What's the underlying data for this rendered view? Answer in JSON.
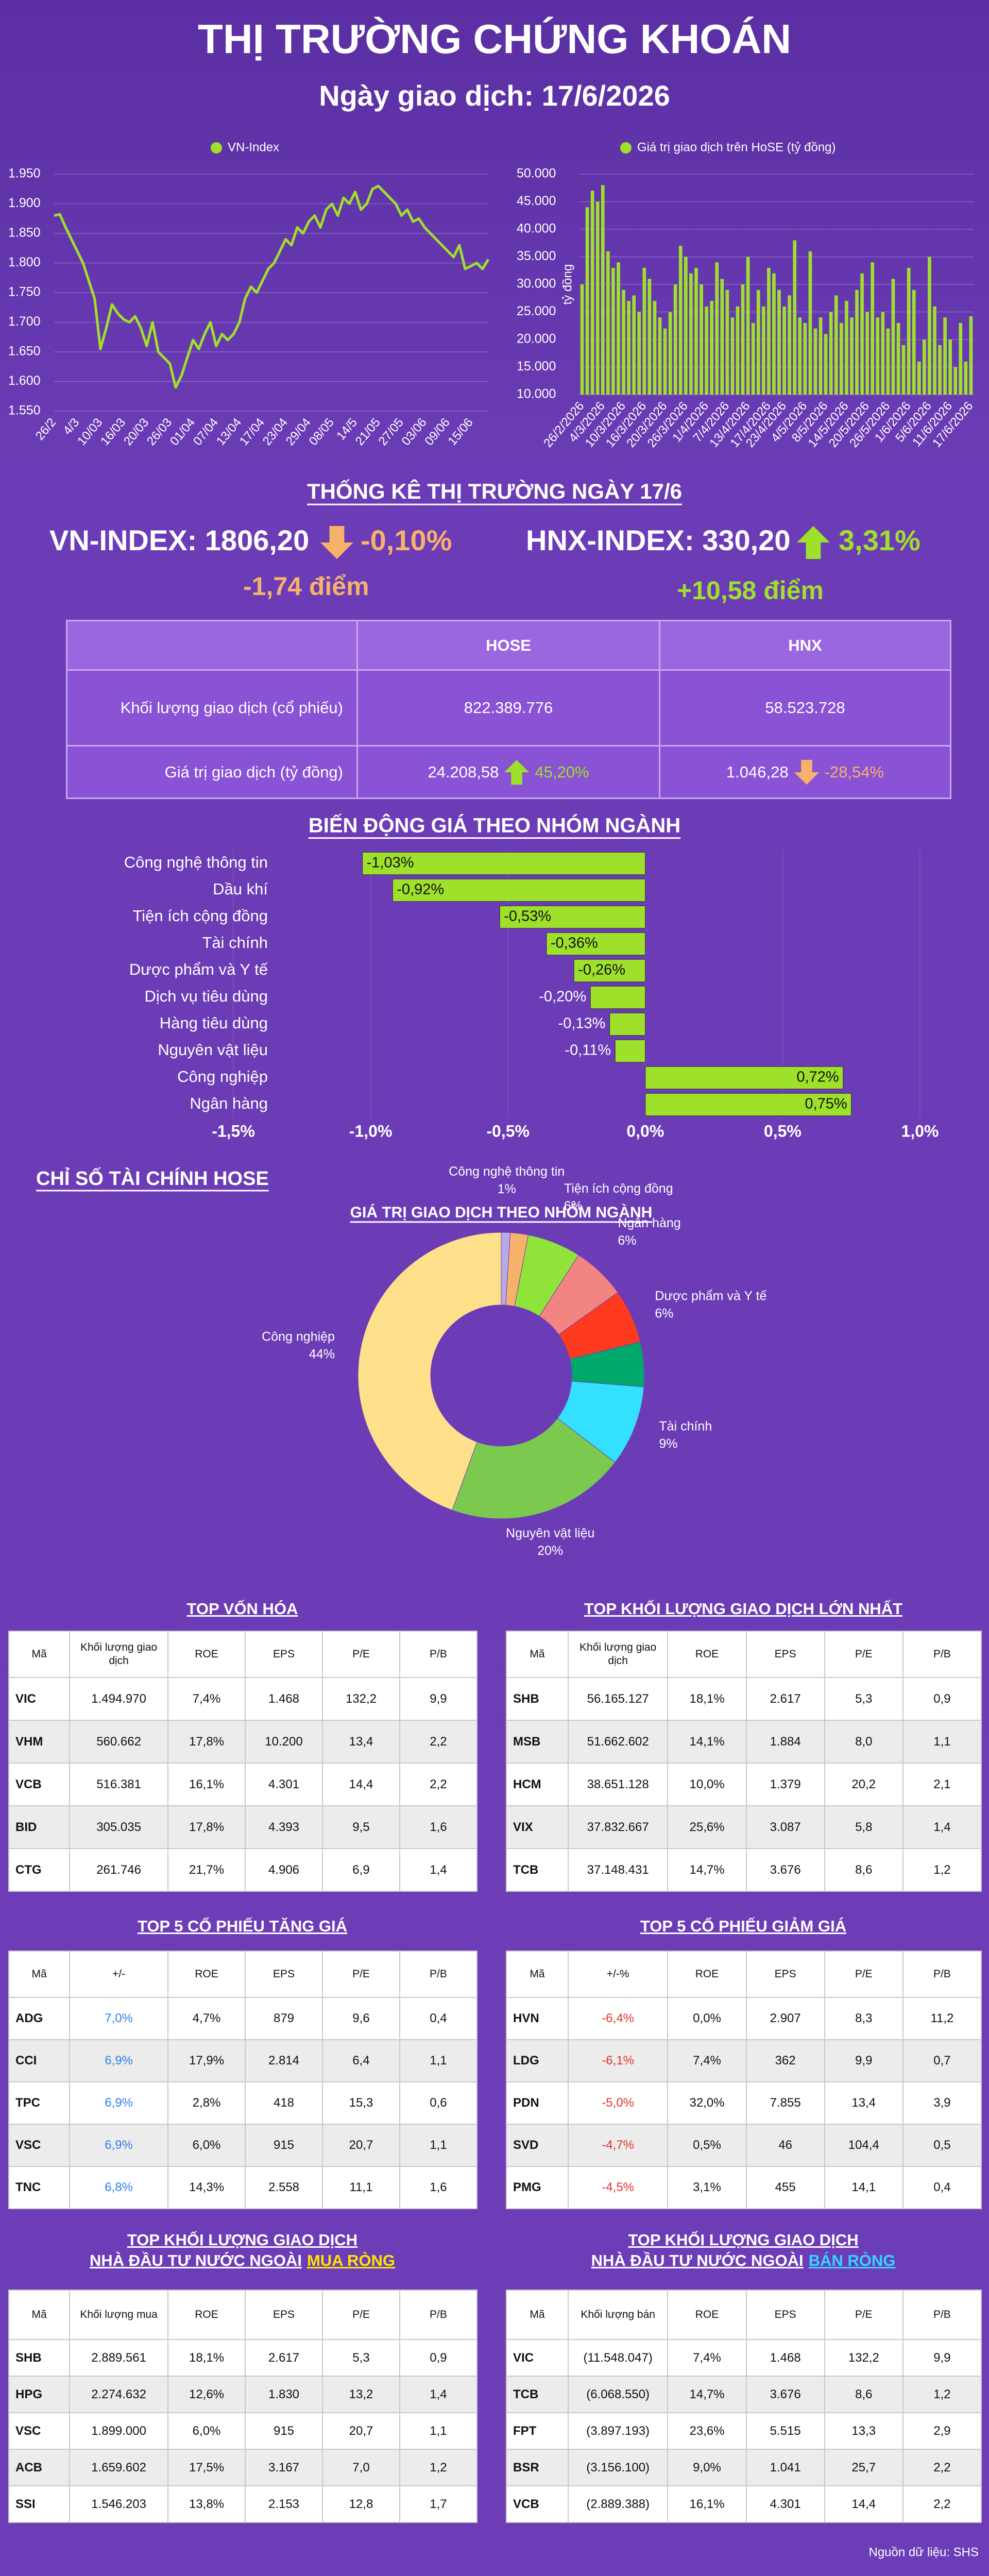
{
  "header": {
    "title": "THỊ TRƯỜNG CHỨNG KHOÁN",
    "subtitle": "Ngày giao dịch: 17/6/2026"
  },
  "chart_data": [
    {
      "type": "line",
      "categories": [
        "26/2",
        null,
        null,
        null,
        "4/3",
        null,
        null,
        null,
        "10/03",
        null,
        null,
        null,
        "16/03",
        null,
        null,
        null,
        "20/03",
        null,
        null,
        null,
        "26/03",
        null,
        null,
        null,
        "01/04",
        null,
        null,
        null,
        "07/04",
        null,
        null,
        null,
        "13/04",
        null,
        null,
        null,
        "17/04",
        null,
        null,
        null,
        "23/04",
        null,
        null,
        null,
        "29/04",
        null,
        null,
        null,
        "08/05",
        null,
        null,
        null,
        "14/5",
        null,
        null,
        null,
        "21/05",
        null,
        null,
        null,
        "27/05",
        null,
        null,
        null,
        "03/06",
        null,
        null,
        null,
        "09/06",
        null,
        null,
        null,
        "15/06",
        null,
        null,
        null
      ],
      "series": [
        {
          "name": "VN-Index",
          "color": "#9fe02b",
          "values": [
            1880,
            1882,
            1860,
            1840,
            1820,
            1800,
            1770,
            1740,
            1655,
            1690,
            1730,
            1715,
            1705,
            1700,
            1710,
            1690,
            1660,
            1700,
            1650,
            1640,
            1630,
            1590,
            1610,
            1640,
            1670,
            1655,
            1680,
            1700,
            1660,
            1680,
            1670,
            1680,
            1700,
            1740,
            1760,
            1750,
            1770,
            1790,
            1800,
            1820,
            1840,
            1830,
            1860,
            1850,
            1870,
            1880,
            1860,
            1890,
            1900,
            1880,
            1910,
            1900,
            1920,
            1890,
            1900,
            1925,
            1930,
            1920,
            1910,
            1900,
            1880,
            1890,
            1870,
            1875,
            1860,
            1850,
            1840,
            1830,
            1820,
            1810,
            1830,
            1790,
            1795,
            1800,
            1790,
            1806.2
          ]
        }
      ],
      "ylim": [
        1550,
        1950
      ],
      "yticks": [
        {
          "value": 1550,
          "label": "1.550"
        },
        {
          "value": 1600,
          "label": "1.600"
        },
        {
          "value": 1650,
          "label": "1.650"
        },
        {
          "value": 1700,
          "label": "1.700"
        },
        {
          "value": 1750,
          "label": "1.750"
        },
        {
          "value": 1800,
          "label": "1.800"
        },
        {
          "value": 1850,
          "label": "1.850"
        },
        {
          "value": 1900,
          "label": "1.900"
        },
        {
          "value": 1950,
          "label": "1.950"
        }
      ],
      "grid": true
    },
    {
      "type": "bar",
      "categories": [
        "26/2/2026",
        null,
        null,
        null,
        "4/3/2026",
        null,
        null,
        null,
        "10/3/2026",
        null,
        null,
        null,
        "16/3/2026",
        null,
        null,
        null,
        "20/3/2026",
        null,
        null,
        null,
        "26/3/2026",
        null,
        null,
        null,
        "1/4/2026",
        null,
        null,
        null,
        "7/4/2026",
        null,
        null,
        null,
        "13/4/2026",
        null,
        null,
        null,
        "17/4/2026",
        null,
        null,
        "23/4/2026",
        null,
        null,
        null,
        "4/5/2026",
        null,
        null,
        null,
        "8/5/2026",
        null,
        null,
        null,
        "14/5/2026",
        null,
        null,
        null,
        "20/5/2026",
        null,
        null,
        null,
        "26/5/2026",
        null,
        null,
        null,
        "1/6/2026",
        null,
        null,
        null,
        "5/6/2026",
        null,
        null,
        null,
        "11/6/2026",
        null,
        null,
        null,
        "17/6/2026"
      ],
      "series": [
        {
          "name": "Giá trị giao dịch trên HoSE (tỷ đồng)",
          "color": "#9fe02b",
          "values": [
            30000,
            44000,
            47000,
            45000,
            48000,
            36000,
            33000,
            34000,
            29000,
            27000,
            28000,
            25000,
            33000,
            31000,
            27000,
            24000,
            22000,
            25000,
            30000,
            37000,
            35000,
            32000,
            33000,
            30000,
            26000,
            27000,
            34000,
            31000,
            29000,
            24000,
            26000,
            30000,
            35000,
            23000,
            29000,
            26000,
            33000,
            32000,
            29000,
            26000,
            28000,
            38000,
            24000,
            23000,
            36000,
            22000,
            24000,
            21000,
            25000,
            28000,
            23000,
            27000,
            24000,
            29000,
            32000,
            25000,
            34000,
            24000,
            25000,
            22000,
            31000,
            23000,
            19000,
            33000,
            29000,
            16000,
            20000,
            35000,
            26000,
            19000,
            24000,
            20000,
            15000,
            23000,
            16000,
            24208.58
          ]
        }
      ],
      "y_label": "tỷ đồng",
      "ylim": [
        10000,
        50000
      ],
      "yticks": [
        {
          "value": 10000,
          "label": "10.000"
        },
        {
          "value": 15000,
          "label": "15.000"
        },
        {
          "value": 20000,
          "label": "20.000"
        },
        {
          "value": 25000,
          "label": "25.000"
        },
        {
          "value": 30000,
          "label": "30.000"
        },
        {
          "value": 35000,
          "label": "35.000"
        },
        {
          "value": 40000,
          "label": "40.000"
        },
        {
          "value": 45000,
          "label": "45.000"
        },
        {
          "value": 50000,
          "label": "50.000"
        }
      ],
      "grid": true
    },
    {
      "type": "bar",
      "orientation": "horizontal",
      "title": "BIẾN ĐỘNG GIÁ THEO NHÓM NGÀNH",
      "categories": [
        "Công nghệ thông tin",
        "Dầu khí",
        "Tiện ích cộng đồng",
        "Tài chính",
        "Dược phẩm và Y tế",
        "Dịch vụ tiêu dùng",
        "Hàng tiêu dùng",
        "Nguyên vật liệu",
        "Công nghiệp",
        "Ngân hàng"
      ],
      "values": [
        -1.03,
        -0.92,
        -0.53,
        -0.36,
        -0.26,
        -0.2,
        -0.13,
        -0.11,
        0.72,
        0.75
      ],
      "value_labels": [
        "-1,03%",
        "-0,92%",
        "-0,53%",
        "-0,36%",
        "-0,26%",
        "-0,20%",
        "-0,13%",
        "-0,11%",
        "0,72%",
        "0,75%"
      ],
      "color": "#9fe02b",
      "xlim": [
        -1.5,
        1.0
      ],
      "xticks": [
        {
          "value": -1.5,
          "label": "-1,5%"
        },
        {
          "value": -1.0,
          "label": "-1,0%"
        },
        {
          "value": -0.5,
          "label": "-0,5%"
        },
        {
          "value": 0,
          "label": "0,0%"
        },
        {
          "value": 0.5,
          "label": "0,5%"
        },
        {
          "value": 1.0,
          "label": "1,0%"
        }
      ],
      "grid": true
    },
    {
      "type": "donut",
      "title": "GIÁ TRỊ GIAO DỊCH THEO NHÓM NGÀNH",
      "categories": [
        "Công nghệ thông tin",
        null,
        "Tiện ích cộng đồng",
        "Ngân hàng",
        "Dược phẩm và Y tế",
        null,
        "Tài chính",
        "Nguyên vật liệu",
        "Công nghiệp"
      ],
      "values": [
        1,
        2,
        6,
        6,
        6,
        5,
        9,
        20,
        44
      ],
      "value_labels": [
        "1%",
        null,
        "6%",
        "6%",
        "6%",
        null,
        "9%",
        "20%",
        "44%"
      ],
      "colors": [
        "#b9a9e6",
        "#f6b26b",
        "#8fe33a",
        "#f28482",
        "#ff3b1f",
        "#00a86b",
        "#33e0ff",
        "#7cc94f",
        "#ffe08a"
      ]
    }
  ],
  "market": {
    "title": "THỐNG KÊ THỊ TRƯỜNG NGÀY 17/6",
    "indices": [
      {
        "label": "VN-INDEX: 1806,20",
        "change_pct": "-0,10%",
        "change_pts": "-1,74 điểm"
      },
      {
        "label": "HNX-INDEX: 330,20",
        "change_pct": "3,31%",
        "change_pts": "+10,58 điểm"
      }
    ],
    "table": {
      "columns": [
        "HOSE",
        "HNX"
      ],
      "rows": [
        {
          "label": "Khối lượng giao dịch (cổ phiếu)",
          "cells": [
            {
              "value": "822.389.776"
            },
            {
              "value": "58.523.728"
            }
          ]
        },
        {
          "label": "Giá trị giao dịch (tỷ đồng)",
          "cells": [
            {
              "value": "24.208,58",
              "change": "45,20%"
            },
            {
              "value": "1.046,28",
              "change": "-28,54%"
            }
          ]
        }
      ]
    }
  },
  "sections": {
    "hose": "CHỈ SỐ TÀI CHÍNH HOSE"
  },
  "tables": [
    {
      "title": "TOP VỐN HÓA",
      "columns": [
        "Mã",
        "Khối lượng giao dịch",
        "ROE",
        "EPS",
        "P/E",
        "P/B"
      ],
      "rows": [
        [
          "VIC",
          "1.494.970",
          "7,4%",
          "1.468",
          "132,2",
          "9,9"
        ],
        [
          "VHM",
          "560.662",
          "17,8%",
          "10.200",
          "13,4",
          "2,2"
        ],
        [
          "VCB",
          "516.381",
          "16,1%",
          "4.301",
          "14,4",
          "2,2"
        ],
        [
          "BID",
          "305.035",
          "17,8%",
          "4.393",
          "9,5",
          "1,6"
        ],
        [
          "CTG",
          "261.746",
          "21,7%",
          "4.906",
          "6,9",
          "1,4"
        ]
      ]
    },
    {
      "title": "TOP KHỐI LƯỢNG GIAO DỊCH LỚN NHẤT",
      "columns": [
        "Mã",
        "Khối lượng giao dịch",
        "ROE",
        "EPS",
        "P/E",
        "P/B"
      ],
      "rows": [
        [
          "SHB",
          "56.165.127",
          "18,1%",
          "2.617",
          "5,3",
          "0,9"
        ],
        [
          "MSB",
          "51.662.602",
          "14,1%",
          "1.884",
          "8,0",
          "1,1"
        ],
        [
          "HCM",
          "38.651.128",
          "10,0%",
          "1.379",
          "20,2",
          "2,1"
        ],
        [
          "VIX",
          "37.832.667",
          "25,6%",
          "3.087",
          "5,8",
          "1,4"
        ],
        [
          "TCB",
          "37.148.431",
          "14,7%",
          "3.676",
          "8,6",
          "1,2"
        ]
      ]
    },
    {
      "title": "TOP 5 CỔ PHIẾU TĂNG GIÁ",
      "columns": [
        "Mã",
        "+/-",
        "ROE",
        "EPS",
        "P/E",
        "P/B"
      ],
      "accent_column": 1,
      "accent_color": "#2f80ed",
      "rows": [
        [
          "ADG",
          "7,0%",
          "4,7%",
          "879",
          "9,6",
          "0,4"
        ],
        [
          "CCI",
          "6,9%",
          "17,9%",
          "2.814",
          "6,4",
          "1,1"
        ],
        [
          "TPC",
          "6,9%",
          "2,8%",
          "418",
          "15,3",
          "0,6"
        ],
        [
          "VSC",
          "6,9%",
          "6,0%",
          "915",
          "20,7",
          "1,1"
        ],
        [
          "TNC",
          "6,8%",
          "14,3%",
          "2.558",
          "11,1",
          "1,6"
        ]
      ]
    },
    {
      "title": "TOP 5 CỔ PHIẾU GIẢM GIÁ",
      "columns": [
        "Mã",
        "+/-%",
        "ROE",
        "EPS",
        "P/E",
        "P/B"
      ],
      "accent_column": 1,
      "accent_color": "#e0352b",
      "rows": [
        [
          "HVN",
          "-6,4%",
          "0,0%",
          "2.907",
          "8,3",
          "11,2"
        ],
        [
          "LDG",
          "-6,1%",
          "7,4%",
          "362",
          "9,9",
          "0,7"
        ],
        [
          "PDN",
          "-5,0%",
          "32,0%",
          "7.855",
          "13,4",
          "3,9"
        ],
        [
          "SVD",
          "-4,7%",
          "0,5%",
          "46",
          "104,4",
          "0,5"
        ],
        [
          "PMG",
          "-4,5%",
          "3,1%",
          "455",
          "14,1",
          "0,4"
        ]
      ]
    },
    {
      "title": "TOP KHỐI LƯỢNG GIAO DỊCH",
      "subtitle": "NHÀ ĐẦU TƯ NƯỚC NGOÀI",
      "highlight": "MUA RÒNG",
      "highlight_color": "#ffe600",
      "columns": [
        "Mã",
        "Khối lượng mua",
        "ROE",
        "EPS",
        "P/E",
        "P/B"
      ],
      "rows": [
        [
          "SHB",
          "2.889.561",
          "18,1%",
          "2.617",
          "5,3",
          "0,9"
        ],
        [
          "HPG",
          "2.274.632",
          "12,6%",
          "1.830",
          "13,2",
          "1,4"
        ],
        [
          "VSC",
          "1.899.000",
          "6,0%",
          "915",
          "20,7",
          "1,1"
        ],
        [
          "ACB",
          "1.659.602",
          "17,5%",
          "3.167",
          "7,0",
          "1,2"
        ],
        [
          "SSI",
          "1.546.203",
          "13,8%",
          "2.153",
          "12,8",
          "1,7"
        ]
      ]
    },
    {
      "title": "TOP KHỐI LƯỢNG GIAO DỊCH",
      "subtitle": "NHÀ ĐẦU TƯ NƯỚC NGOÀI",
      "highlight": "BÁN RÒNG",
      "highlight_color": "#33d6ff",
      "columns": [
        "Mã",
        "Khối lượng bán",
        "ROE",
        "EPS",
        "P/E",
        "P/B"
      ],
      "rows": [
        [
          "VIC",
          "(11.548.047)",
          "7,4%",
          "1.468",
          "132,2",
          "9,9"
        ],
        [
          "TCB",
          "(6.068.550)",
          "14,7%",
          "3.676",
          "8,6",
          "1,2"
        ],
        [
          "FPT",
          "(3.897.193)",
          "23,6%",
          "5.515",
          "13,3",
          "2,9"
        ],
        [
          "BSR",
          "(3.156.100)",
          "9,0%",
          "1.041",
          "25,7",
          "2,2"
        ],
        [
          "VCB",
          "(2.889.388)",
          "16,1%",
          "4.301",
          "14,4",
          "2,2"
        ]
      ]
    }
  ],
  "source": "Nguồn dữ liệu: SHS"
}
